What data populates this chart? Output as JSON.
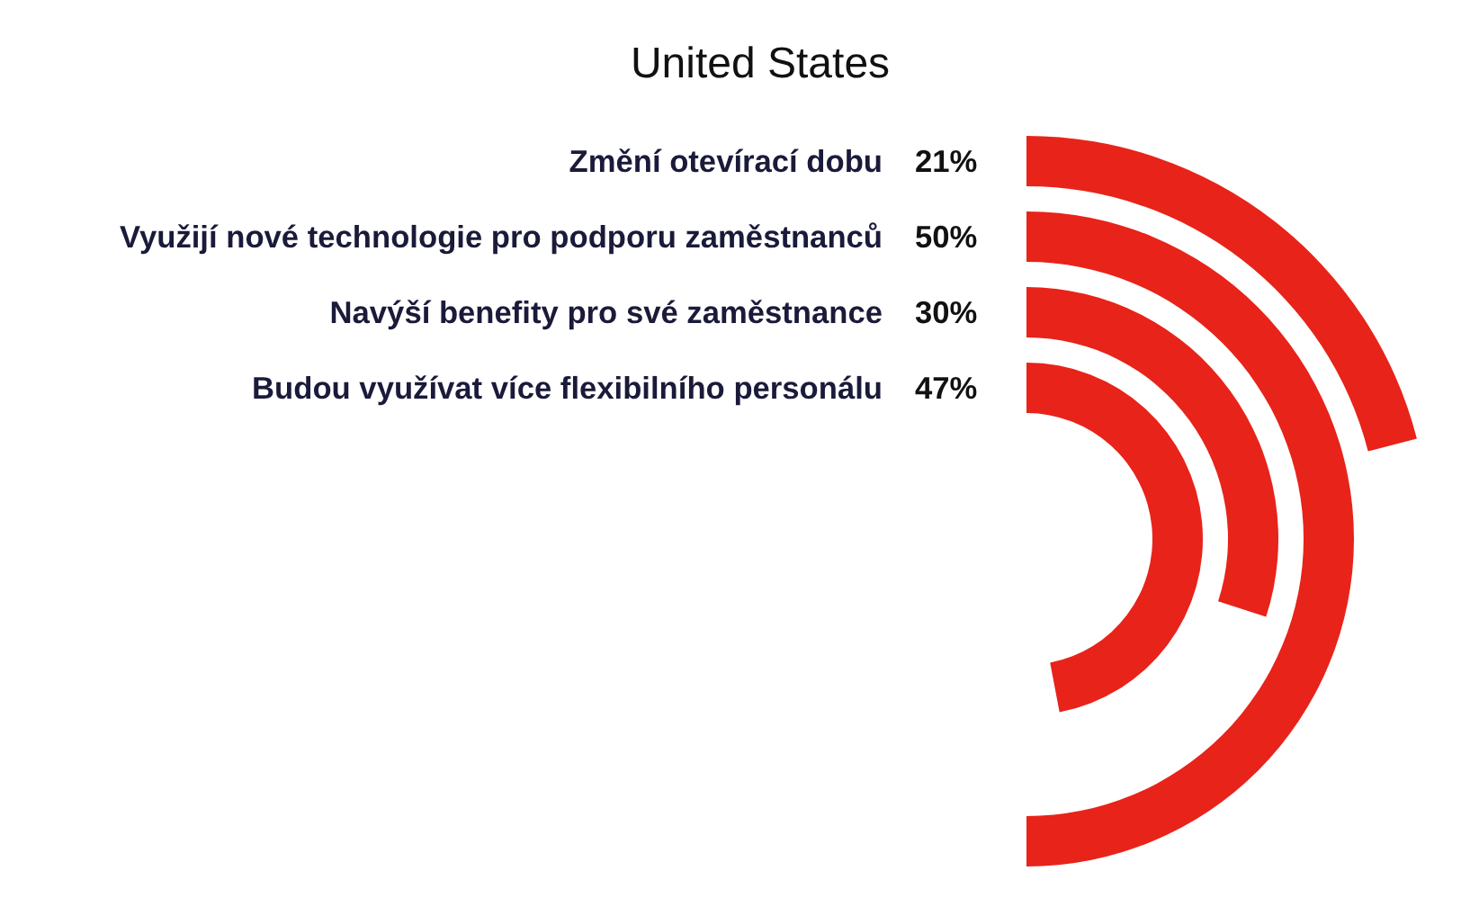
{
  "chart_data": {
    "type": "other",
    "title": "United States",
    "categories": [
      "Změní otevírací dobu",
      "Využijí nové technologie pro podporu zaměstnanců",
      "Navýší benefity pro své zaměstnance",
      "Budou využívat více flexibilního personálu"
    ],
    "values": [
      21,
      50,
      30,
      47
    ],
    "value_labels": [
      "21%",
      "50%",
      "30%",
      "47%"
    ],
    "color": "#e8231a"
  }
}
